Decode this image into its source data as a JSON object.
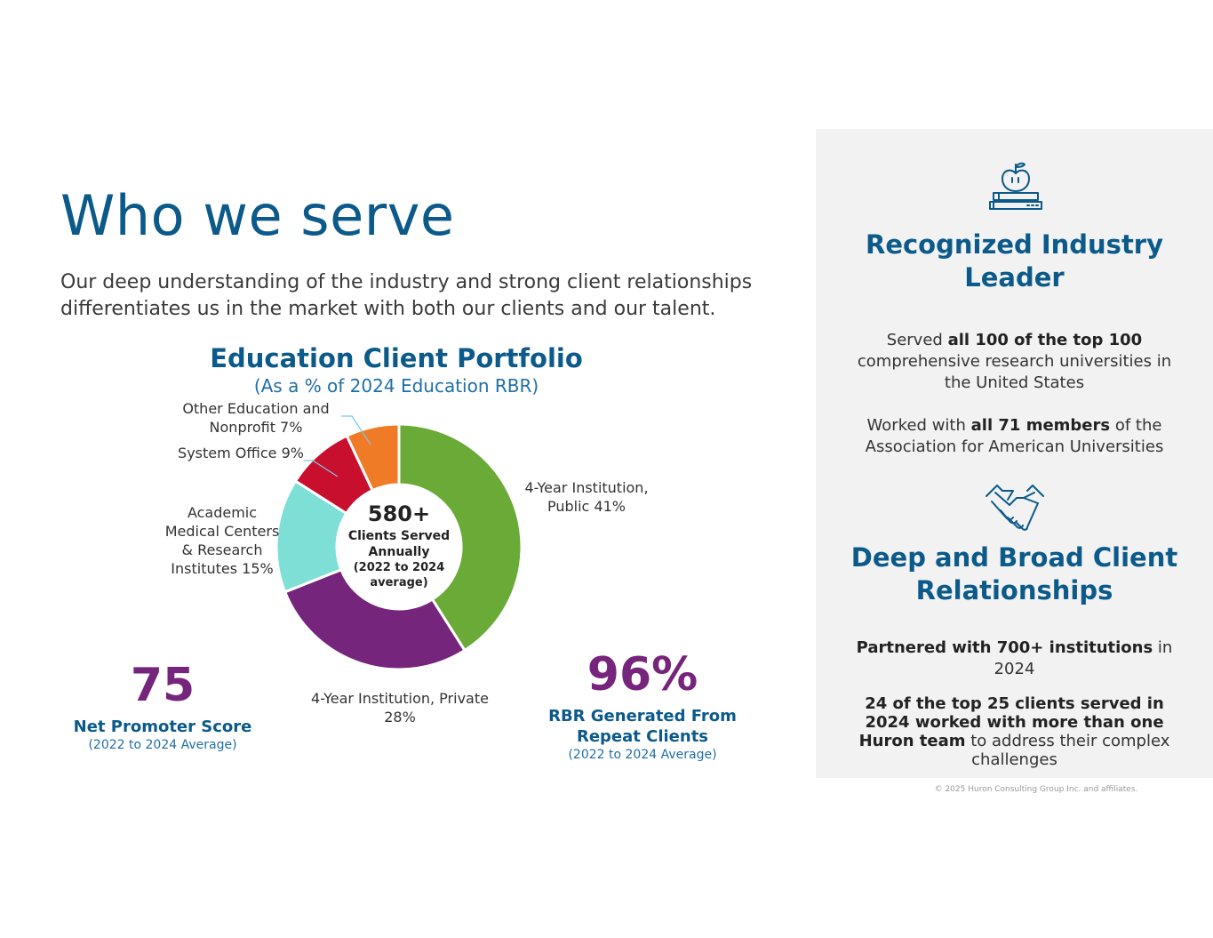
{
  "page": {
    "title": "Who we serve",
    "intro": "Our deep understanding of the industry and strong client relationships differentiates us in the market with both our clients and our talent."
  },
  "chart": {
    "title": "Education Client Portfolio",
    "subtitle": "(As a % of 2024 Education RBR)",
    "center_value": "580+",
    "center_text": "Clients Served Annually",
    "center_note": "(2022 to 2024 average)"
  },
  "chart_data": {
    "type": "pie",
    "title": "Education Client Portfolio",
    "subtitle": "(As a % of 2024 Education RBR)",
    "categories": [
      "4-Year Institution, Public",
      "4-Year Institution, Private",
      "Academic Medical Centers & Research Institutes",
      "System Office",
      "Other Education and Nonprofit"
    ],
    "values": [
      41,
      28,
      15,
      9,
      7
    ],
    "colors": [
      "#6aaa37",
      "#76257d",
      "#7ddfd6",
      "#c8102e",
      "#f07b26"
    ],
    "labels": [
      "4-Year Institution, Public 41%",
      "4-Year Institution, Private 28%",
      "Academic Medical Centers & Research Institutes 15%",
      "System Office 9%",
      "Other Education and Nonprofit 7%"
    ]
  },
  "stats": {
    "nps": {
      "value": "75",
      "label": "Net Promoter Score",
      "note": "(2022 to 2024 Average)"
    },
    "rbr": {
      "value": "96%",
      "label": "RBR Generated From Repeat Clients",
      "note": "(2022 to 2024 Average)"
    }
  },
  "side": {
    "icon1": "apple-books-icon",
    "icon2": "handshake-icon",
    "heading1": "Recognized Industry Leader",
    "heading2": "Deep and Broad Client Relationships",
    "text1_a": "Served ",
    "text1_b": "all 100 of the top 100",
    "text1_c": " comprehensive research universities in the United States",
    "text2_a": "Worked with ",
    "text2_b": "all 71 members",
    "text2_c": " of the Association for American Universities",
    "text3_a": "Partnered with 700+ institutions",
    "text3_b": " in 2024",
    "text4_a": "24 of the top 25 clients served in 2024 worked with more than one Huron team",
    "text4_b": " to address their complex challenges"
  },
  "footer": "© 2025 Huron Consulting Group Inc. and affiliates."
}
